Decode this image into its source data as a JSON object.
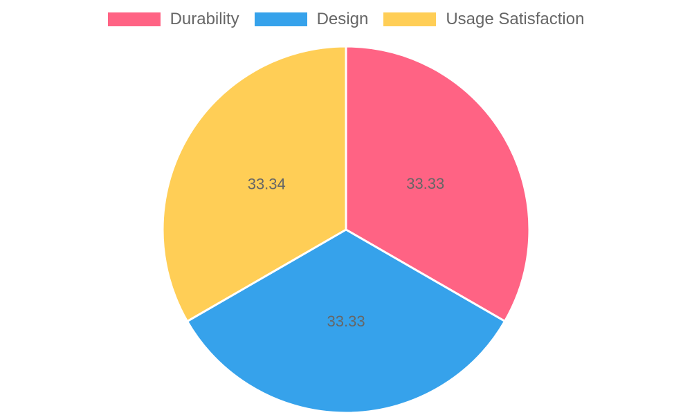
{
  "chart_data": {
    "type": "pie",
    "categories": [
      "Durability",
      "Design",
      "Usage Satisfaction"
    ],
    "values": [
      33.33,
      33.33,
      33.34
    ],
    "value_labels": [
      "33.33",
      "33.33",
      "33.34"
    ],
    "colors": [
      "#ff6384",
      "#36a2eb",
      "#ffce56"
    ],
    "legend_position": "top",
    "start_angle": "12 o'clock",
    "direction": "clockwise",
    "label_color": "#666666",
    "border_color": "#ffffff"
  }
}
